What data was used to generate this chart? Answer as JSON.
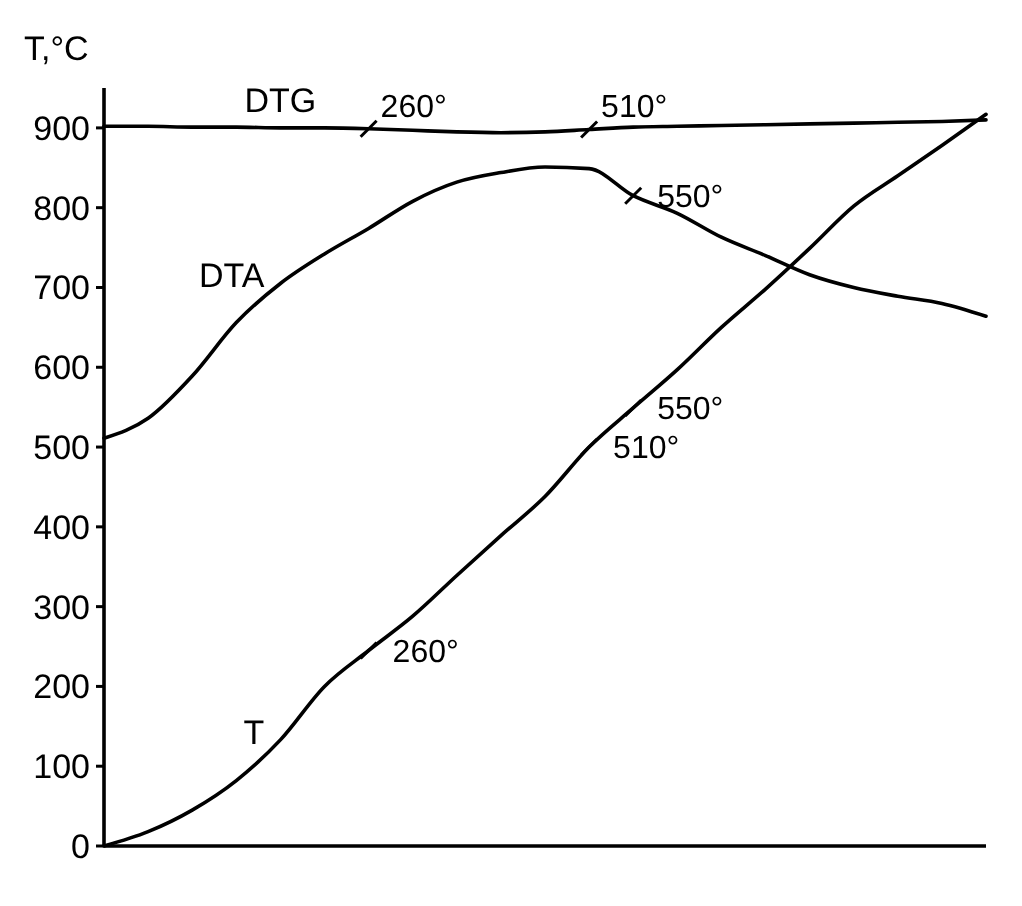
{
  "chart_data": {
    "type": "line",
    "ylabel": "T,°C",
    "categories": [
      null,
      null,
      null,
      null,
      null,
      null,
      null,
      null,
      null,
      null,
      null,
      null,
      null,
      null,
      null,
      null,
      null,
      null,
      null,
      null,
      null
    ],
    "series": [
      {
        "name": "DTG",
        "color": "#000000",
        "values": [
          902,
          902,
          901,
          901,
          900,
          900,
          899,
          897,
          895,
          894,
          895,
          898,
          901,
          902,
          903,
          904,
          905,
          906,
          907,
          908,
          910
        ]
      },
      {
        "name": "DTA",
        "color": "#000000",
        "values": [
          511,
          536,
          589,
          656,
          705,
          742,
          774,
          808,
          832,
          844,
          851,
          849,
          815,
          793,
          763,
          740,
          716,
          700,
          689,
          680,
          664
        ]
      },
      {
        "name": "T",
        "color": "#000000",
        "values": [
          0,
          18,
          45,
          82,
          133,
          200,
          245,
          288,
          339,
          389,
          438,
          500,
          549,
          597,
          650,
          698,
          749,
          802,
          840,
          878,
          917
        ]
      }
    ],
    "ylim": [
      0,
      950
    ],
    "yticks": [
      0,
      100,
      200,
      300,
      400,
      500,
      600,
      700,
      800,
      900
    ],
    "tick_labels": "y",
    "grid": false,
    "marker": "none",
    "line_style": "solid",
    "annotations": [
      {
        "text": "260°",
        "y": 899
      },
      {
        "text": "510°",
        "y": 898
      },
      "550°",
      "260°",
      "510°",
      "550°"
    ]
  }
}
